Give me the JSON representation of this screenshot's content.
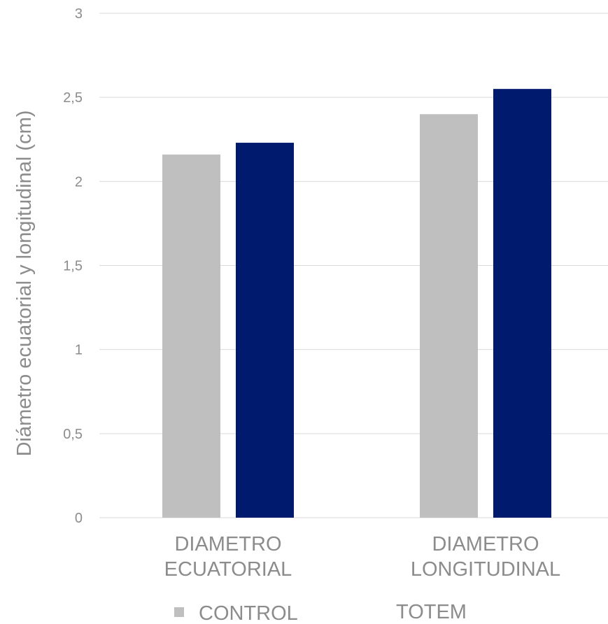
{
  "chart_data": {
    "type": "bar",
    "categories": [
      [
        "DIAMETRO",
        "ECUATORIAL"
      ],
      [
        "DIAMETRO",
        "LONGITUDINAL"
      ]
    ],
    "series": [
      {
        "name": "CONTROL",
        "values": [
          2.16,
          2.4
        ],
        "color": "#bfbfbf"
      },
      {
        "name": "TOTEM",
        "values": [
          2.23,
          2.55
        ],
        "color": "#001a6e"
      }
    ],
    "ylabel": "Diámetro ecuatorial y longitudinal (cm)",
    "ylim": [
      0,
      3
    ],
    "yticks": [
      0,
      0.5,
      1,
      1.5,
      2,
      2.5,
      3
    ],
    "ytick_labels": [
      "0",
      "0,5",
      "1",
      "1,5",
      "2",
      "2,5",
      "3"
    ],
    "grid": true,
    "legend_position": "bottom"
  }
}
